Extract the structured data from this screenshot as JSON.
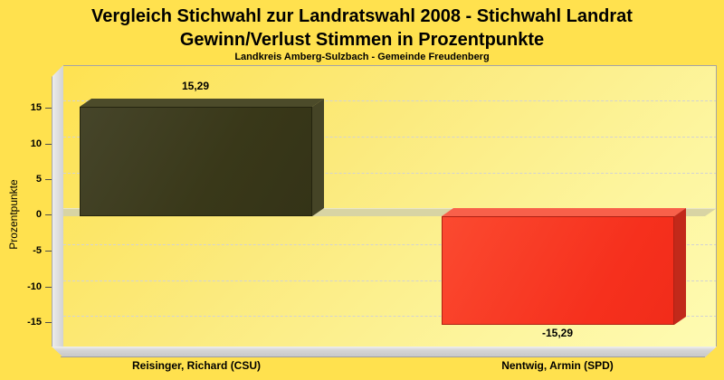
{
  "page": {
    "background_color": "#ffe14e"
  },
  "header": {
    "title_line1": "Vergleich Stichwahl zur Landratswahl 2008 - Stichwahl Landrat",
    "title_line2": "Gewinn/Verlust Stimmen in Prozentpunkte",
    "subtitle": "Landkreis Amberg-Sulzbach - Gemeinde Freudenberg"
  },
  "chart_data": {
    "type": "bar",
    "title": "Vergleich Stichwahl zur Landratswahl 2008 - Stichwahl Landrat Gewinn/Verlust Stimmen in Prozentpunkte",
    "subtitle": "Landkreis Amberg-Sulzbach - Gemeinde Freudenberg",
    "categories": [
      "Reisinger, Richard (CSU)",
      "Nentwig, Armin (SPD)"
    ],
    "values": [
      15.29,
      -15.29
    ],
    "value_labels": [
      "15,29",
      "-15,29"
    ],
    "bar_colors": [
      "#3d3c1e",
      "#f93822"
    ],
    "xlabel": "",
    "ylabel": "Prozentpunkte",
    "yticks": [
      15,
      10,
      5,
      0,
      -5,
      -10,
      -15
    ],
    "ytick_labels": [
      "15",
      "10",
      "5",
      "0",
      "-5",
      "-10",
      "-15"
    ],
    "ylim": [
      -19.5,
      20.5
    ],
    "grid": "dashed horizontal",
    "legend": "none",
    "style": "3d-bars, yellow gradient plot background, gray zero plane"
  }
}
